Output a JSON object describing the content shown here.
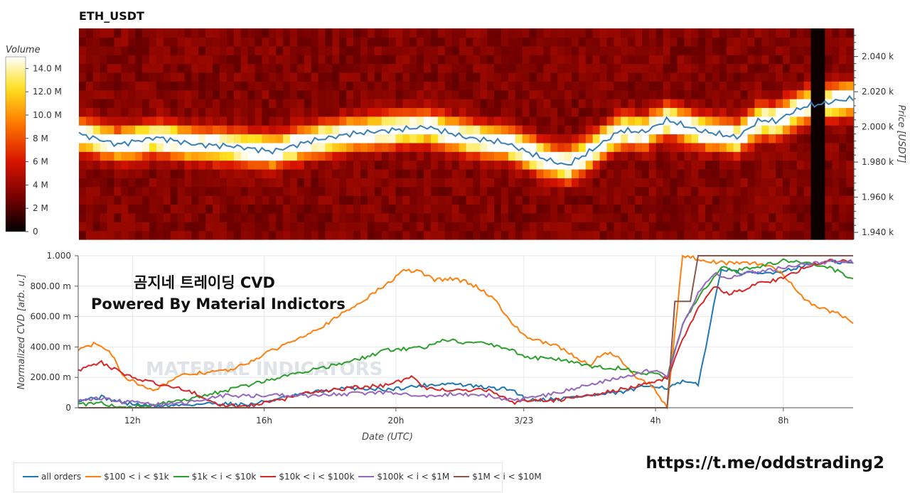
{
  "header": {
    "title": "ETH_USDT"
  },
  "overlay": {
    "line1": "곰지네 트레이딩 CVD",
    "line2": "Powered By Material Indictors",
    "watermark": "MATERIAL INDICATORS"
  },
  "footer": {
    "url": "https://t.me/oddstrading2"
  },
  "colors": {
    "all": "#1f77b4",
    "s100": "#ff7f0e",
    "s1k": "#2ca02c",
    "s10k": "#d62728",
    "s100k": "#9467bd",
    "s1m": "#8c564b",
    "price": "#3a7fb5"
  },
  "chart_data": [
    {
      "type": "heatmap",
      "title": "ETH_USDT",
      "ylabel": "Price [USDT]",
      "yticks": [
        "2.040 k",
        "2.020 k",
        "2.000 k",
        "1.980 k",
        "1.960 k",
        "1.940 k"
      ],
      "ytick_values": [
        2040,
        2020,
        2000,
        1980,
        1960,
        1940
      ],
      "ylim": [
        1936,
        2056
      ],
      "colorbar": {
        "title": "Volume",
        "ticks": [
          "14.0 M",
          "12.0 M",
          "10.0 M",
          "8 M",
          "6 M",
          "4 M",
          "2 M",
          "0"
        ],
        "tick_values": [
          14,
          12,
          10,
          8,
          6,
          4,
          2,
          0
        ],
        "range": [
          0,
          15
        ]
      },
      "price_line": {
        "x": [
          0,
          0.05,
          0.1,
          0.15,
          0.2,
          0.25,
          0.3,
          0.35,
          0.4,
          0.45,
          0.5,
          0.55,
          0.6,
          0.63,
          0.66,
          0.7,
          0.73,
          0.76,
          0.8,
          0.85,
          0.88,
          0.9,
          0.92,
          0.94,
          0.96,
          0.98,
          1.0
        ],
        "y": [
          1996,
          1990,
          1994,
          1990,
          1989,
          1986,
          1992,
          1996,
          1998,
          2000,
          1994,
          1991,
          1982,
          1978,
          1986,
          1998,
          1997,
          2004,
          1998,
          1994,
          2004,
          2003,
          2008,
          2012,
          2013,
          2015,
          2016
        ]
      }
    },
    {
      "type": "line",
      "xlabel": "Date (UTC)",
      "ylabel": "Normalized CVD [arb. u.]",
      "xticks": [
        "12h",
        "16h",
        "20h",
        "3/23",
        "4h",
        "8h"
      ],
      "xtick_positions": [
        0.07,
        0.24,
        0.41,
        0.575,
        0.745,
        0.91
      ],
      "yticks": [
        "1.000",
        "800.00 m",
        "600.00 m",
        "400.00 m",
        "200.00 m",
        "0"
      ],
      "ytick_values": [
        1.0,
        0.8,
        0.6,
        0.4,
        0.2,
        0
      ],
      "ylim": [
        0,
        1.0
      ],
      "series": [
        {
          "name": "all orders",
          "key": "all",
          "x": [
            0,
            0.03,
            0.06,
            0.1,
            0.14,
            0.18,
            0.22,
            0.26,
            0.3,
            0.35,
            0.4,
            0.45,
            0.48,
            0.53,
            0.56,
            0.58,
            0.62,
            0.66,
            0.7,
            0.74,
            0.76,
            0.78,
            0.8,
            0.83,
            0.85,
            0.88,
            0.91,
            0.94,
            0.97,
            1.0
          ],
          "y": [
            0.05,
            0.07,
            0.03,
            0.01,
            0.02,
            0.03,
            0.02,
            0.06,
            0.1,
            0.13,
            0.12,
            0.15,
            0.16,
            0.13,
            0.12,
            0.05,
            0.06,
            0.08,
            0.1,
            0.15,
            0.13,
            0.17,
            0.15,
            0.92,
            0.89,
            0.88,
            0.9,
            0.94,
            0.96,
            0.95
          ]
        },
        {
          "name": "$100 < i < $1k",
          "key": "s100",
          "x": [
            0,
            0.02,
            0.04,
            0.06,
            0.08,
            0.1,
            0.12,
            0.14,
            0.16,
            0.2,
            0.24,
            0.28,
            0.32,
            0.36,
            0.4,
            0.42,
            0.44,
            0.46,
            0.48,
            0.5,
            0.52,
            0.54,
            0.56,
            0.58,
            0.62,
            0.66,
            0.68,
            0.7,
            0.72,
            0.74,
            0.76,
            0.78,
            0.8,
            0.82,
            0.84,
            0.86,
            0.88,
            0.9,
            0.92,
            0.94,
            0.96,
            0.98,
            1.0
          ],
          "y": [
            0.38,
            0.42,
            0.38,
            0.2,
            0.15,
            0.12,
            0.18,
            0.22,
            0.23,
            0.25,
            0.35,
            0.45,
            0.55,
            0.68,
            0.82,
            0.9,
            0.9,
            0.84,
            0.85,
            0.83,
            0.78,
            0.7,
            0.55,
            0.46,
            0.4,
            0.28,
            0.37,
            0.32,
            0.2,
            0.15,
            0.0,
            1.0,
            0.98,
            0.96,
            0.95,
            0.96,
            0.94,
            0.92,
            0.82,
            0.7,
            0.65,
            0.62,
            0.56
          ]
        },
        {
          "name": "$1k < i < $10k",
          "key": "s1k",
          "x": [
            0,
            0.03,
            0.06,
            0.1,
            0.14,
            0.18,
            0.22,
            0.26,
            0.3,
            0.35,
            0.4,
            0.45,
            0.47,
            0.5,
            0.53,
            0.56,
            0.58,
            0.62,
            0.66,
            0.7,
            0.74,
            0.76,
            0.78,
            0.8,
            0.83,
            0.85,
            0.88,
            0.91,
            0.94,
            0.97,
            1.0
          ],
          "y": [
            0.02,
            0.03,
            0.0,
            0.02,
            0.05,
            0.1,
            0.15,
            0.2,
            0.25,
            0.3,
            0.38,
            0.4,
            0.45,
            0.43,
            0.42,
            0.38,
            0.33,
            0.32,
            0.27,
            0.26,
            0.22,
            0.2,
            0.55,
            0.72,
            0.93,
            0.9,
            0.93,
            0.97,
            0.95,
            0.92,
            0.85
          ]
        },
        {
          "name": "$10k < i < $100k",
          "key": "s10k",
          "x": [
            0,
            0.03,
            0.06,
            0.08,
            0.1,
            0.14,
            0.18,
            0.22,
            0.26,
            0.3,
            0.35,
            0.4,
            0.43,
            0.45,
            0.48,
            0.53,
            0.56,
            0.58,
            0.62,
            0.66,
            0.7,
            0.74,
            0.76,
            0.78,
            0.8,
            0.82,
            0.84,
            0.86,
            0.88,
            0.91,
            0.94,
            0.97,
            1.0
          ],
          "y": [
            0.25,
            0.3,
            0.22,
            0.18,
            0.16,
            0.12,
            0.02,
            0.01,
            0.05,
            0.1,
            0.13,
            0.15,
            0.2,
            0.13,
            0.11,
            0.12,
            0.03,
            0.05,
            0.05,
            0.08,
            0.12,
            0.16,
            0.2,
            0.45,
            0.65,
            0.8,
            0.75,
            0.78,
            0.82,
            0.85,
            0.93,
            0.97,
            0.96
          ]
        },
        {
          "name": "$100k < i < $1M",
          "key": "s100k",
          "x": [
            0,
            0.03,
            0.06,
            0.1,
            0.14,
            0.18,
            0.22,
            0.26,
            0.3,
            0.35,
            0.4,
            0.45,
            0.48,
            0.53,
            0.56,
            0.58,
            0.62,
            0.66,
            0.7,
            0.74,
            0.76,
            0.78,
            0.8,
            0.82,
            0.84,
            0.86,
            0.88,
            0.91,
            0.94,
            0.97,
            1.0
          ],
          "y": [
            0.05,
            0.06,
            0.04,
            0.02,
            0.03,
            0.08,
            0.08,
            0.08,
            0.08,
            0.09,
            0.1,
            0.08,
            0.09,
            0.08,
            0.05,
            0.06,
            0.1,
            0.15,
            0.2,
            0.25,
            0.2,
            0.55,
            0.75,
            0.88,
            0.86,
            0.88,
            0.9,
            0.92,
            0.95,
            0.96,
            0.96
          ]
        },
        {
          "name": "$1M < i < $10M",
          "key": "s1m",
          "x": [
            0,
            0.5,
            0.72,
            0.76,
            0.77,
            0.79,
            0.8,
            0.81,
            1.0
          ],
          "y": [
            0,
            0,
            0,
            0,
            0.7,
            0.7,
            1.0,
            1.0,
            1.0
          ]
        }
      ]
    }
  ]
}
